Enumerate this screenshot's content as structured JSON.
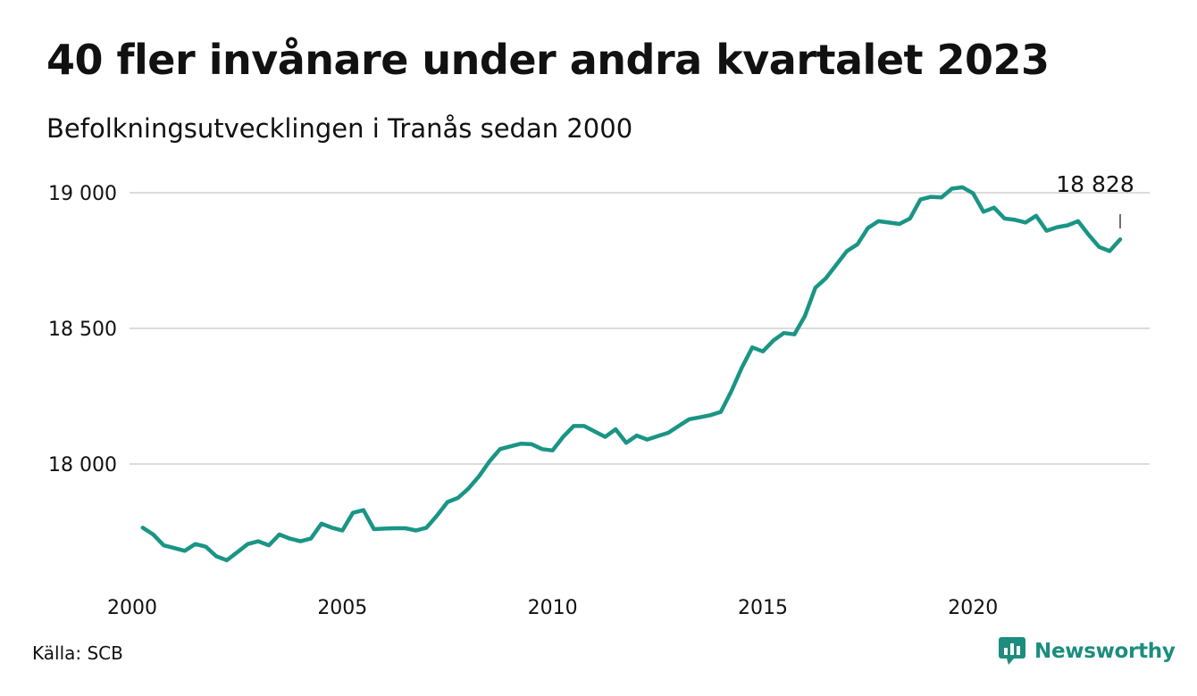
{
  "header": {
    "title": "40 fler invånare under andra kvartalet 2023",
    "subtitle": "Befolkningsutvecklingen i Tranås sedan 2000"
  },
  "footer": {
    "source": "Källa: SCB",
    "brand": "Newsworthy"
  },
  "colors": {
    "line": "#1a9585",
    "grid": "#dcdcdc",
    "brand": "#1c8d7e",
    "text": "#111111"
  },
  "chart_data": {
    "type": "line",
    "title": "40 fler invånare under andra kvartalet 2023",
    "subtitle": "Befolkningsutvecklingen i Tranås sedan 2000",
    "xlabel": "",
    "ylabel": "",
    "xlim": [
      2000,
      2023.5
    ],
    "ylim": [
      17600,
      19120
    ],
    "grid": "horizontal",
    "x_ticks": [
      {
        "value": 2000,
        "label": "2000"
      },
      {
        "value": 2005,
        "label": "2005"
      },
      {
        "value": 2010,
        "label": "2010"
      },
      {
        "value": 2015,
        "label": "2015"
      },
      {
        "value": 2020,
        "label": "2020"
      }
    ],
    "y_ticks": [
      {
        "value": 18000,
        "label": "18 000"
      },
      {
        "value": 18500,
        "label": "18 500"
      },
      {
        "value": 19000,
        "label": "19 000"
      }
    ],
    "end_label": "18 828",
    "series": [
      {
        "x": [
          2000.25,
          2000.5,
          2000.75,
          2001,
          2001.25,
          2001.5,
          2001.75,
          2002,
          2002.25,
          2002.5,
          2002.75,
          2003,
          2003.25,
          2003.5,
          2003.75,
          2004,
          2004.25,
          2004.5,
          2004.75,
          2005,
          2005.25,
          2005.5,
          2005.75,
          2006,
          2006.25,
          2006.5,
          2006.75,
          2007,
          2007.25,
          2007.5,
          2007.75,
          2008,
          2008.25,
          2008.5,
          2008.75,
          2009,
          2009.25,
          2009.5,
          2009.75,
          2010,
          2010.25,
          2010.5,
          2010.75,
          2011,
          2011.25,
          2011.5,
          2011.75,
          2012,
          2012.25,
          2012.5,
          2012.75,
          2013,
          2013.25,
          2013.5,
          2013.75,
          2014,
          2014.25,
          2014.5,
          2014.75,
          2015,
          2015.25,
          2015.5,
          2015.75,
          2016,
          2016.25,
          2016.5,
          2016.75,
          2017,
          2017.25,
          2017.5,
          2017.75,
          2018,
          2018.25,
          2018.5,
          2018.75,
          2019,
          2019.25,
          2019.5,
          2019.75,
          2020,
          2020.25,
          2020.5,
          2020.75,
          2021,
          2021.25,
          2021.5,
          2021.75,
          2022,
          2022.25,
          2022.5,
          2022.75,
          2023,
          2023.25,
          2023.5
        ],
        "y": [
          17765,
          17740,
          17700,
          17690,
          17680,
          17705,
          17695,
          17660,
          17645,
          17675,
          17705,
          17715,
          17700,
          17740,
          17725,
          17715,
          17725,
          17780,
          17765,
          17755,
          17820,
          17830,
          17760,
          17762,
          17763,
          17763,
          17755,
          17765,
          17810,
          17860,
          17875,
          17910,
          17955,
          18010,
          18055,
          18065,
          18075,
          18073,
          18055,
          18050,
          18100,
          18140,
          18140,
          18120,
          18100,
          18128,
          18078,
          18105,
          18090,
          18103,
          18115,
          18140,
          18165,
          18172,
          18180,
          18192,
          18268,
          18355,
          18430,
          18415,
          18455,
          18483,
          18478,
          18545,
          18650,
          18685,
          18735,
          18785,
          18810,
          18870,
          18895,
          18890,
          18885,
          18905,
          18975,
          18985,
          18983,
          19015,
          19020,
          18998,
          18930,
          18945,
          18905,
          18900,
          18890,
          18915,
          18860,
          18873,
          18880,
          18895,
          18845,
          18800,
          18785,
          18828
        ]
      }
    ]
  }
}
